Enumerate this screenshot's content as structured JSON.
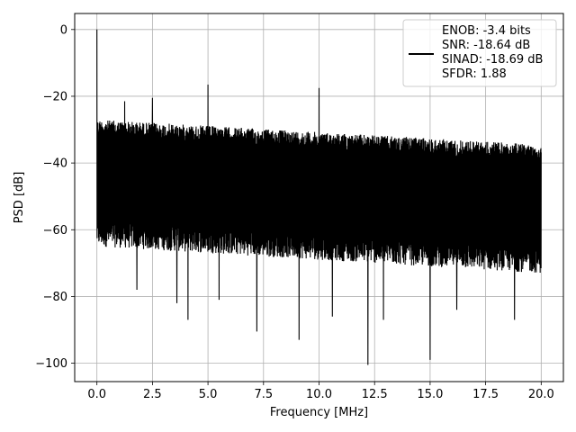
{
  "chart_data": {
    "type": "line",
    "title": "",
    "xlabel": "Frequency [MHz]",
    "ylabel": "PSD [dB]",
    "xlim": [
      -1.0,
      21.0
    ],
    "ylim": [
      -105.5,
      4.8
    ],
    "xticks": [
      0.0,
      2.5,
      5.0,
      7.5,
      10.0,
      12.5,
      15.0,
      17.5,
      20.0
    ],
    "xtick_labels": [
      "0.0",
      "2.5",
      "5.0",
      "7.5",
      "10.0",
      "12.5",
      "15.0",
      "17.5",
      "20.0"
    ],
    "yticks": [
      0,
      -20,
      -40,
      -60,
      -80,
      -100
    ],
    "ytick_labels": [
      "0",
      "−20",
      "−40",
      "−60",
      "−80",
      "−100"
    ],
    "grid": true,
    "legend_position": "top-right",
    "series": [
      {
        "name": "ENOB: -3.4 bits\nSNR: -18.64 dB\nSINAD: -18.69 dB\nSFDR: 1.88",
        "color": "#000000",
        "noise_floor": {
          "x_range": [
            0.0,
            20.0
          ],
          "upper_envelope_db": [
            -27.0,
            -34.5
          ],
          "lower_envelope_db": [
            -65.0,
            -73.0
          ]
        },
        "spikes": [
          {
            "x": 0.0,
            "y": 0.0
          },
          {
            "x": 1.25,
            "y": -21.5
          },
          {
            "x": 2.5,
            "y": -20.5
          },
          {
            "x": 5.0,
            "y": -16.5
          },
          {
            "x": 10.0,
            "y": -17.5
          }
        ],
        "deep_nulls": [
          {
            "x": 1.8,
            "y": -78.0
          },
          {
            "x": 3.6,
            "y": -82.0
          },
          {
            "x": 4.1,
            "y": -87.0
          },
          {
            "x": 5.5,
            "y": -81.0
          },
          {
            "x": 7.2,
            "y": -90.5
          },
          {
            "x": 9.1,
            "y": -93.0
          },
          {
            "x": 10.6,
            "y": -86.0
          },
          {
            "x": 12.2,
            "y": -100.5
          },
          {
            "x": 12.9,
            "y": -87.0
          },
          {
            "x": 15.0,
            "y": -99.0
          },
          {
            "x": 16.2,
            "y": -84.0
          },
          {
            "x": 18.8,
            "y": -87.0
          }
        ]
      }
    ]
  }
}
